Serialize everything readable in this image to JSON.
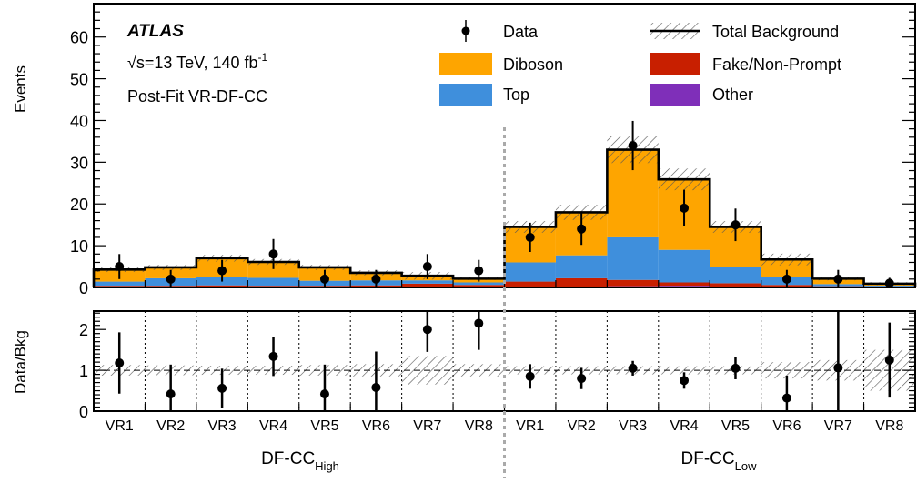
{
  "colors": {
    "diboson": "#fea500",
    "top": "#3f8fdc",
    "fake": "#c81f00",
    "other": "#7f2fb9",
    "line": "#000000",
    "separator": "#aaaaaa"
  },
  "chart_data": {
    "type": "bar",
    "stacked": true,
    "annotations": {
      "experiment": "ATLAS",
      "energy": "√s=13 TeV, 140 fb",
      "energy_sup": "-1",
      "region": "Post-Fit VR-DF-CC"
    },
    "ylabel_top": "Events",
    "ylabel_bottom": "Data/Bkg",
    "top_ylim": [
      0,
      68
    ],
    "top_yticks": [
      "0",
      "10",
      "20",
      "30",
      "40",
      "50",
      "60"
    ],
    "bottom_ylim": [
      0,
      2.45
    ],
    "bottom_yticks": [
      "0",
      "1",
      "2"
    ],
    "categories": [
      "VR1",
      "VR2",
      "VR3",
      "VR4",
      "VR5",
      "VR6",
      "VR7",
      "VR8",
      "VR1",
      "VR2",
      "VR3",
      "VR4",
      "VR5",
      "VR6",
      "VR7",
      "VR8"
    ],
    "groups": [
      {
        "label": "DF-CC",
        "sub": "High"
      },
      {
        "label": "DF-CC",
        "sub": "Low"
      }
    ],
    "legend": {
      "data": "Data",
      "total": "Total Background",
      "diboson": "Diboson",
      "fake": "Fake/Non-Prompt",
      "top": "Top",
      "other": "Other"
    },
    "series": [
      {
        "key": "other",
        "values": [
          0.1,
          0.1,
          0.1,
          0.1,
          0.1,
          0.1,
          0.1,
          0.1,
          0.2,
          0.2,
          0.3,
          0.4,
          0.2,
          0.1,
          0.1,
          0.05
        ]
      },
      {
        "key": "fake",
        "values": [
          0.3,
          0.3,
          0.4,
          0.3,
          0.3,
          0.4,
          0.8,
          0.5,
          1.2,
          2.0,
          1.5,
          0.8,
          0.8,
          0.5,
          0.2,
          0.2
        ]
      },
      {
        "key": "top",
        "values": [
          1.0,
          1.8,
          2.0,
          1.9,
          1.2,
          1.2,
          0.8,
          0.6,
          4.6,
          5.5,
          10.2,
          7.8,
          4.0,
          2.0,
          0.5,
          0.2
        ]
      },
      {
        "key": "diboson",
        "values": [
          2.9,
          2.6,
          4.5,
          3.8,
          3.2,
          1.8,
          1.1,
          0.9,
          8.5,
          10.3,
          21.0,
          16.9,
          9.5,
          4.1,
          1.3,
          0.45
        ]
      }
    ],
    "background_unc": [
      0.6,
      0.6,
      0.8,
      0.7,
      0.6,
      0.6,
      0.9,
      0.3,
      1.4,
      1.8,
      3.2,
      2.6,
      1.4,
      1.4,
      0.4,
      0.35
    ],
    "data": [
      5,
      2,
      4,
      8,
      2,
      2,
      5,
      4,
      12,
      14,
      34,
      19,
      15,
      2,
      2,
      1
    ],
    "data_err": [
      3.0,
      2.2,
      2.6,
      3.6,
      2.2,
      2.2,
      3.0,
      2.6,
      3.5,
      3.8,
      5.9,
      4.4,
      3.9,
      2.2,
      2.2,
      1.3
    ],
    "ratio": [
      1.18,
      0.42,
      0.56,
      1.34,
      0.42,
      0.58,
      2.0,
      2.15,
      0.85,
      0.8,
      1.05,
      0.75,
      1.05,
      0.32,
      1.06,
      1.25
    ],
    "ratio_err": [
      0.75,
      0.72,
      0.48,
      0.48,
      0.72,
      0.88,
      0.55,
      0.65,
      0.3,
      0.26,
      0.18,
      0.2,
      0.27,
      0.55,
      1.38,
      0.92
    ],
    "ratio_unc": [
      0.13,
      0.12,
      0.11,
      0.11,
      0.13,
      0.15,
      0.35,
      0.15,
      0.1,
      0.1,
      0.1,
      0.1,
      0.1,
      0.2,
      0.25,
      0.5
    ]
  }
}
